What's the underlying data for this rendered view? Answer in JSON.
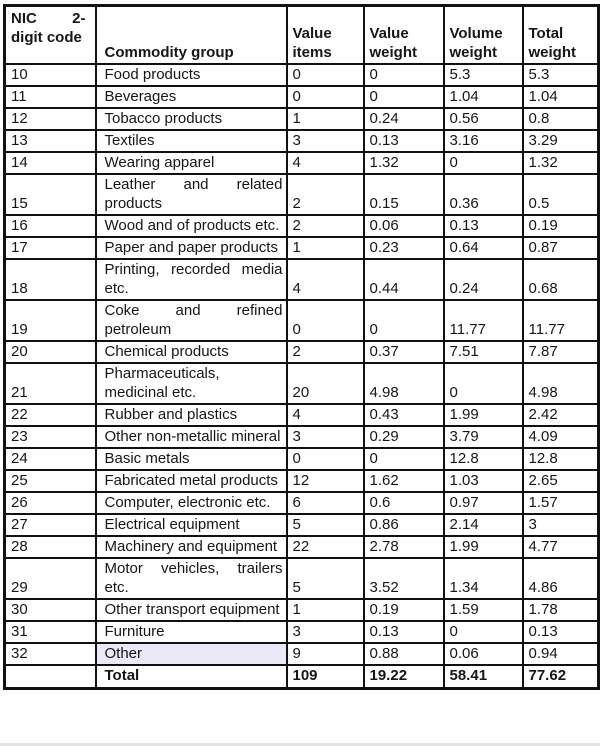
{
  "table": {
    "columns": [
      {
        "key": "code",
        "label": "NIC 2-digit code"
      },
      {
        "key": "commodity",
        "label": "Commodity group"
      },
      {
        "key": "value_items",
        "label": "Value items"
      },
      {
        "key": "value_weight",
        "label": "Value weight"
      },
      {
        "key": "volume_weight",
        "label": "Volume weight"
      },
      {
        "key": "total_weight",
        "label": "Total weight"
      }
    ],
    "highlight_color": "#e9e9f8",
    "rows": [
      {
        "code": "10",
        "commodity": "Food products",
        "value_items": "0",
        "value_weight": "0",
        "volume_weight": "5.3",
        "total_weight": "5.3"
      },
      {
        "code": "11",
        "commodity": "Beverages",
        "value_items": "0",
        "value_weight": "0",
        "volume_weight": "1.04",
        "total_weight": "1.04"
      },
      {
        "code": "12",
        "commodity": "Tobacco products",
        "value_items": "1",
        "value_weight": "0.24",
        "volume_weight": "0.56",
        "total_weight": "0.8"
      },
      {
        "code": "13",
        "commodity": "Textiles",
        "value_items": "3",
        "value_weight": "0.13",
        "volume_weight": "3.16",
        "total_weight": "3.29"
      },
      {
        "code": "14",
        "commodity": "Wearing apparel",
        "value_items": "4",
        "value_weight": "1.32",
        "volume_weight": "0",
        "total_weight": "1.32"
      },
      {
        "code": "15",
        "commodity": "Leather and related products",
        "value_items": "2",
        "value_weight": "0.15",
        "volume_weight": "0.36",
        "total_weight": "0.5"
      },
      {
        "code": "16",
        "commodity": "Wood and of products etc.",
        "value_items": "2",
        "value_weight": "0.06",
        "volume_weight": "0.13",
        "total_weight": "0.19"
      },
      {
        "code": "17",
        "commodity": "Paper and paper products",
        "value_items": "1",
        "value_weight": "0.23",
        "volume_weight": "0.64",
        "total_weight": "0.87"
      },
      {
        "code": "18",
        "commodity": "Printing, recorded media etc.",
        "value_items": "4",
        "value_weight": "0.44",
        "volume_weight": "0.24",
        "total_weight": "0.68"
      },
      {
        "code": "19",
        "commodity": "Coke and refined petroleum",
        "value_items": "0",
        "value_weight": "0",
        "volume_weight": "11.77",
        "total_weight": "11.77"
      },
      {
        "code": "20",
        "commodity": "Chemical products",
        "value_items": "2",
        "value_weight": "0.37",
        "volume_weight": "7.51",
        "total_weight": "7.87"
      },
      {
        "code": "21",
        "commodity": "Pharmaceuticals, medicinal etc.",
        "value_items": "20",
        "value_weight": "4.98",
        "volume_weight": "0",
        "total_weight": "4.98"
      },
      {
        "code": "22",
        "commodity": "Rubber and plastics",
        "value_items": "4",
        "value_weight": "0.43",
        "volume_weight": "1.99",
        "total_weight": "2.42"
      },
      {
        "code": "23",
        "commodity": "Other non-metallic mineral",
        "value_items": "3",
        "value_weight": "0.29",
        "volume_weight": "3.79",
        "total_weight": "4.09"
      },
      {
        "code": "24",
        "commodity": "Basic metals",
        "value_items": "0",
        "value_weight": "0",
        "volume_weight": "12.8",
        "total_weight": "12.8"
      },
      {
        "code": "25",
        "commodity": "Fabricated metal products",
        "value_items": "12",
        "value_weight": "1.62",
        "volume_weight": "1.03",
        "total_weight": "2.65"
      },
      {
        "code": "26",
        "commodity": "Computer, electronic etc.",
        "value_items": "6",
        "value_weight": "0.6",
        "volume_weight": "0.97",
        "total_weight": "1.57"
      },
      {
        "code": "27",
        "commodity": "Electrical equipment",
        "value_items": "5",
        "value_weight": "0.86",
        "volume_weight": "2.14",
        "total_weight": "3"
      },
      {
        "code": "28",
        "commodity": "Machinery and equipment",
        "value_items": "22",
        "value_weight": "2.78",
        "volume_weight": "1.99",
        "total_weight": "4.77"
      },
      {
        "code": "29",
        "commodity": "Motor vehicles, trailers etc.",
        "value_items": "5",
        "value_weight": "3.52",
        "volume_weight": "1.34",
        "total_weight": "4.86"
      },
      {
        "code": "30",
        "commodity": "Other transport equipment",
        "value_items": "1",
        "value_weight": "0.19",
        "volume_weight": "1.59",
        "total_weight": "1.78"
      },
      {
        "code": "31",
        "commodity": "Furniture",
        "value_items": "3",
        "value_weight": "0.13",
        "volume_weight": "0",
        "total_weight": "0.13"
      },
      {
        "code": "32",
        "commodity": "Other",
        "value_items": "9",
        "value_weight": "0.88",
        "volume_weight": "0.06",
        "total_weight": "0.94",
        "highlight_commodity": true
      },
      {
        "code": "",
        "commodity": "Total",
        "value_items": "109",
        "value_weight": "19.22",
        "volume_weight": "58.41",
        "total_weight": "77.62",
        "is_total": true
      }
    ]
  }
}
